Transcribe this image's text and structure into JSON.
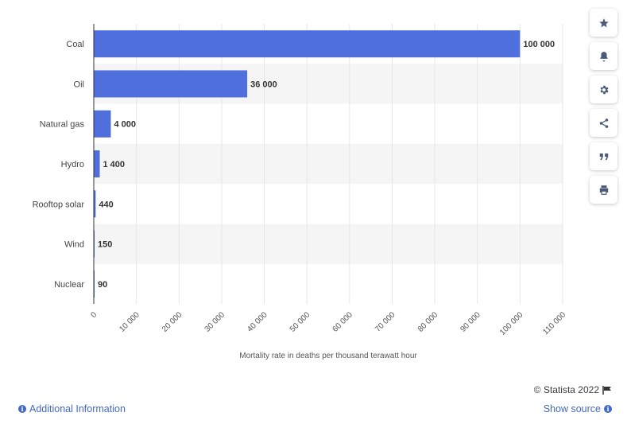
{
  "chart_data": {
    "type": "bar",
    "orientation": "horizontal",
    "categories": [
      "Coal",
      "Oil",
      "Natural gas",
      "Hydro",
      "Rooftop solar",
      "Wind",
      "Nuclear"
    ],
    "values": [
      100000,
      36000,
      4000,
      1400,
      440,
      150,
      90
    ],
    "value_labels": [
      "100 000",
      "36 000",
      "4 000",
      "1 400",
      "440",
      "150",
      "90"
    ],
    "xlabel": "Mortality rate in deaths per thousand terawatt hour",
    "ylabel": "",
    "xlim": [
      0,
      110000
    ],
    "xticks": [
      0,
      10000,
      20000,
      30000,
      40000,
      50000,
      60000,
      70000,
      80000,
      90000,
      100000,
      110000
    ],
    "xtick_labels": [
      "0",
      "10 000",
      "20 000",
      "30 000",
      "40 000",
      "50 000",
      "60 000",
      "70 000",
      "80 000",
      "90 000",
      "100 000",
      "110 000"
    ],
    "grid": true,
    "bar_color": "#4f6fdc",
    "stripe_color": "#f5f5f5"
  },
  "toolbar": {
    "buttons": [
      {
        "name": "favorite",
        "icon": "star-icon"
      },
      {
        "name": "notifications",
        "icon": "bell-icon"
      },
      {
        "name": "settings",
        "icon": "gear-icon"
      },
      {
        "name": "share",
        "icon": "share-icon"
      },
      {
        "name": "cite",
        "icon": "quote-icon"
      },
      {
        "name": "print",
        "icon": "printer-icon"
      }
    ]
  },
  "footer": {
    "credit": "© Statista 2022",
    "additional_info": "Additional Information",
    "show_source": "Show source"
  }
}
